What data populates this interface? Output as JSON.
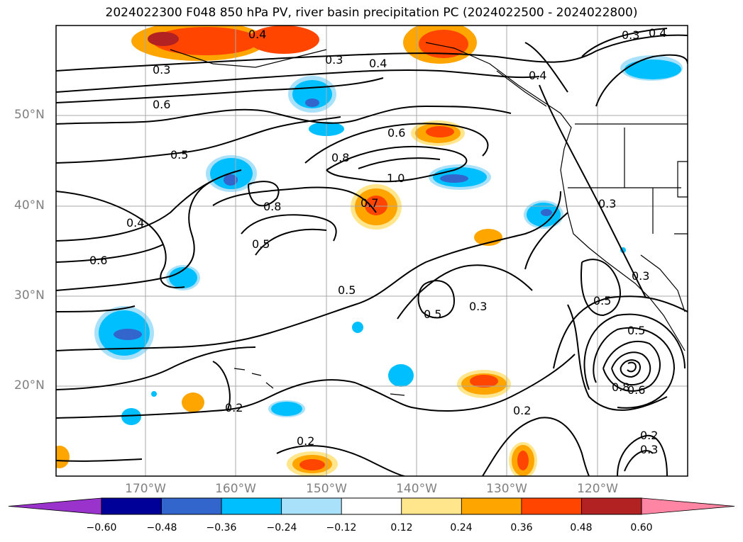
{
  "title": "2024022300 F048 850 hPa PV, river basin precipitation PC (2024022500 - 2024022800)",
  "map": {
    "lat_labels": [
      "50°N",
      "40°N",
      "30°N",
      "20°N"
    ],
    "lon_labels": [
      "170°W",
      "160°W",
      "150°W",
      "140°W",
      "130°W",
      "120°W"
    ],
    "contour_labels": [
      "0.3",
      "0.4",
      "0.3",
      "0.4",
      "0.6",
      "0.5",
      "0.4",
      "0.6",
      "0.8",
      "0.6",
      "0.8",
      "1.0",
      "0.7",
      "0.5",
      "0.5",
      "0.5",
      "0.3",
      "0.3",
      "0.4",
      "0.3",
      "0.2",
      "0.2",
      "0.2",
      "0.5",
      "0.5",
      "0.8",
      "0.6",
      "0.2",
      "0.3",
      "0.4",
      "0.3"
    ]
  },
  "colorbar": {
    "colors": [
      "#9933cc",
      "#000099",
      "#3366cc",
      "#00bfff",
      "#aae1fa",
      "#ffffff",
      "#ffe68c",
      "#ffa500",
      "#ff4500",
      "#b22222",
      "#ff85a5"
    ],
    "ticks": [
      "−0.60",
      "−0.48",
      "−0.36",
      "−0.24",
      "−0.12",
      "0.12",
      "0.24",
      "0.36",
      "0.48",
      "0.60"
    ]
  }
}
